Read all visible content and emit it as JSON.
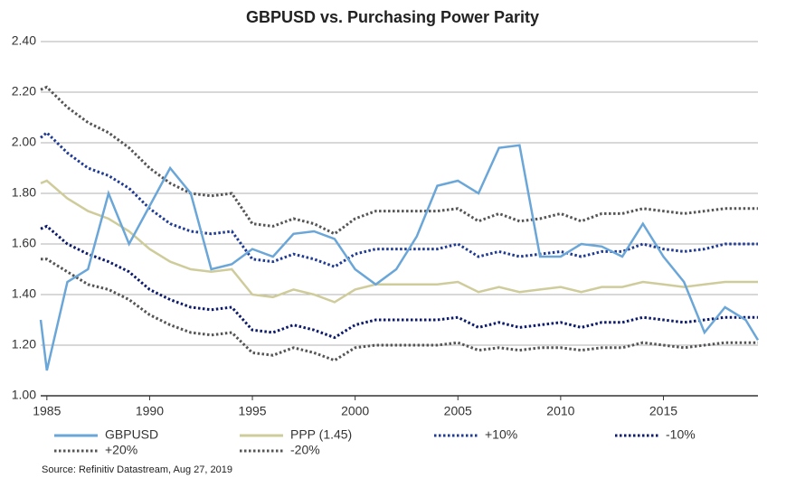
{
  "chart_data": {
    "type": "line",
    "title": "GBPUSD vs. Purchasing Power Parity",
    "source": "Source: Refinitiv Datastream, Aug 27, 2019",
    "x": [
      1984.7,
      1985,
      1986,
      1987,
      1988,
      1989,
      1990,
      1991,
      1992,
      1993,
      1994,
      1995,
      1996,
      1997,
      1998,
      1999,
      2000,
      2001,
      2002,
      2003,
      2004,
      2005,
      2006,
      2007,
      2008,
      2009,
      2010,
      2011,
      2012,
      2013,
      2014,
      2015,
      2016,
      2017,
      2018,
      2019,
      2019.6
    ],
    "xlim": [
      1984.7,
      2019.6
    ],
    "xticks": [
      1985,
      1990,
      1995,
      2000,
      2005,
      2010,
      2015
    ],
    "ylim": [
      1.0,
      2.4
    ],
    "yticks": [
      {
        "value": 1.0,
        "label": "1.00"
      },
      {
        "value": 1.2,
        "label": "1.20"
      },
      {
        "value": 1.4,
        "label": "1.40"
      },
      {
        "value": 1.6,
        "label": "1.60"
      },
      {
        "value": 1.8,
        "label": "1.80"
      },
      {
        "value": 2.0,
        "label": "2.00"
      },
      {
        "value": 2.2,
        "label": "2.20"
      },
      {
        "value": 2.4,
        "label": "2.40"
      }
    ],
    "grid": true,
    "series": [
      {
        "name": "GBPUSD",
        "color": "#6aa6d8",
        "dash": "solid",
        "values": [
          1.3,
          1.1,
          1.45,
          1.5,
          1.8,
          1.6,
          1.75,
          1.9,
          1.8,
          1.5,
          1.52,
          1.58,
          1.55,
          1.64,
          1.65,
          1.62,
          1.5,
          1.44,
          1.5,
          1.63,
          1.83,
          1.85,
          1.8,
          1.98,
          1.99,
          1.55,
          1.55,
          1.6,
          1.59,
          1.55,
          1.68,
          1.55,
          1.45,
          1.25,
          1.35,
          1.3,
          1.22
        ]
      },
      {
        "name": "PPP (1.45)",
        "color": "#cfcc9c",
        "dash": "solid",
        "values": [
          1.84,
          1.85,
          1.78,
          1.73,
          1.7,
          1.65,
          1.58,
          1.53,
          1.5,
          1.49,
          1.5,
          1.4,
          1.39,
          1.42,
          1.4,
          1.37,
          1.42,
          1.44,
          1.44,
          1.44,
          1.44,
          1.45,
          1.41,
          1.43,
          1.41,
          1.42,
          1.43,
          1.41,
          1.43,
          1.43,
          1.45,
          1.44,
          1.43,
          1.44,
          1.45,
          1.45,
          1.45
        ]
      },
      {
        "name": "+10%",
        "color": "#1f3a93",
        "dash": "dotted",
        "values": [
          2.02,
          2.04,
          1.96,
          1.9,
          1.87,
          1.82,
          1.74,
          1.68,
          1.65,
          1.64,
          1.65,
          1.54,
          1.53,
          1.56,
          1.54,
          1.51,
          1.56,
          1.58,
          1.58,
          1.58,
          1.58,
          1.6,
          1.55,
          1.57,
          1.55,
          1.56,
          1.57,
          1.55,
          1.57,
          1.57,
          1.6,
          1.58,
          1.57,
          1.58,
          1.6,
          1.6,
          1.6
        ]
      },
      {
        "name": "-10%",
        "color": "#0c1a6b",
        "dash": "dotted",
        "values": [
          1.66,
          1.67,
          1.6,
          1.56,
          1.53,
          1.49,
          1.42,
          1.38,
          1.35,
          1.34,
          1.35,
          1.26,
          1.25,
          1.28,
          1.26,
          1.23,
          1.28,
          1.3,
          1.3,
          1.3,
          1.3,
          1.31,
          1.27,
          1.29,
          1.27,
          1.28,
          1.29,
          1.27,
          1.29,
          1.29,
          1.31,
          1.3,
          1.29,
          1.3,
          1.31,
          1.31,
          1.31
        ]
      },
      {
        "name": "+20%",
        "color": "#555555",
        "dash": "dotted",
        "values": [
          2.21,
          2.22,
          2.14,
          2.08,
          2.04,
          1.98,
          1.9,
          1.84,
          1.8,
          1.79,
          1.8,
          1.68,
          1.67,
          1.7,
          1.68,
          1.64,
          1.7,
          1.73,
          1.73,
          1.73,
          1.73,
          1.74,
          1.69,
          1.72,
          1.69,
          1.7,
          1.72,
          1.69,
          1.72,
          1.72,
          1.74,
          1.73,
          1.72,
          1.73,
          1.74,
          1.74,
          1.74
        ]
      },
      {
        "name": "-20%",
        "color": "#555555",
        "dash": "dotted",
        "values": [
          1.54,
          1.54,
          1.49,
          1.44,
          1.42,
          1.38,
          1.32,
          1.28,
          1.25,
          1.24,
          1.25,
          1.17,
          1.16,
          1.19,
          1.17,
          1.14,
          1.19,
          1.2,
          1.2,
          1.2,
          1.2,
          1.21,
          1.18,
          1.19,
          1.18,
          1.19,
          1.19,
          1.18,
          1.19,
          1.19,
          1.21,
          1.2,
          1.19,
          1.2,
          1.21,
          1.21,
          1.21
        ]
      }
    ]
  }
}
